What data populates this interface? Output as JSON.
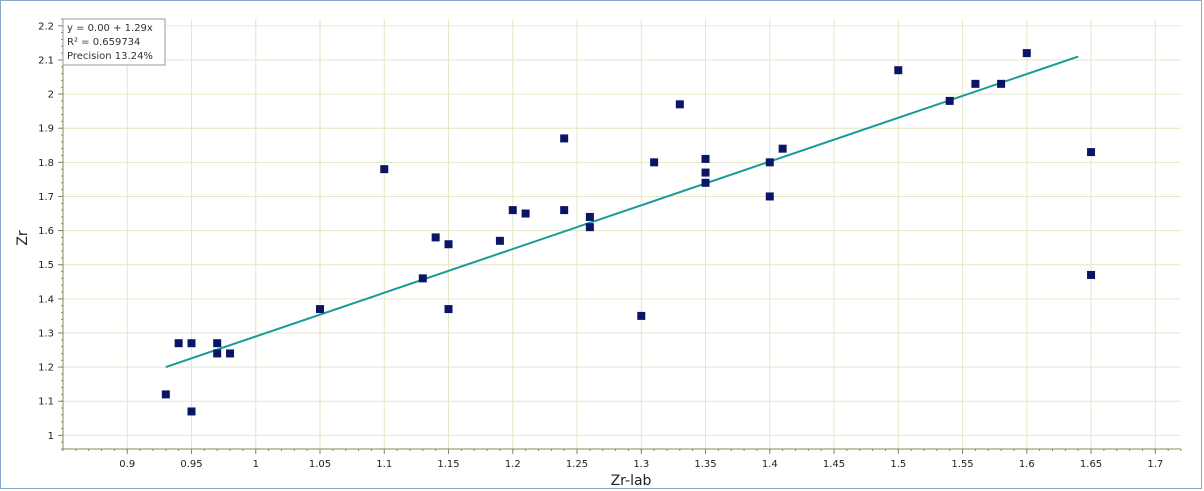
{
  "chart_data": {
    "type": "scatter",
    "xlabel": "Zr-lab",
    "ylabel": "Zr",
    "xlim": [
      0.85,
      1.72
    ],
    "ylim": [
      0.96,
      2.22
    ],
    "x_ticks": [
      "0.9",
      "0.95",
      "1",
      "1.05",
      "1.1",
      "1.15",
      "1.2",
      "1.25",
      "1.3",
      "1.35",
      "1.4",
      "1.45",
      "1.5",
      "1.55",
      "1.6",
      "1.65",
      "1.7"
    ],
    "y_ticks": [
      "1",
      "1.1",
      "1.2",
      "1.3",
      "1.4",
      "1.5",
      "1.6",
      "1.7",
      "1.8",
      "1.9",
      "2",
      "2.1",
      "2.2"
    ],
    "grid": true,
    "stats_box": {
      "equation": "y = 0.00 + 1.29x",
      "r_squared": "R² = 0.659734",
      "precision": "Precision 13.24%"
    },
    "series": [
      {
        "type": "scatter",
        "color": "#0b1565",
        "points": [
          [
            0.93,
            1.12
          ],
          [
            0.94,
            1.27
          ],
          [
            0.95,
            1.27
          ],
          [
            0.95,
            1.07
          ],
          [
            0.97,
            1.27
          ],
          [
            0.97,
            1.24
          ],
          [
            0.98,
            1.24
          ],
          [
            1.05,
            1.37
          ],
          [
            1.1,
            1.78
          ],
          [
            1.13,
            1.46
          ],
          [
            1.14,
            1.58
          ],
          [
            1.15,
            1.56
          ],
          [
            1.15,
            1.37
          ],
          [
            1.19,
            1.57
          ],
          [
            1.2,
            1.66
          ],
          [
            1.21,
            1.65
          ],
          [
            1.24,
            1.87
          ],
          [
            1.24,
            1.66
          ],
          [
            1.26,
            1.64
          ],
          [
            1.26,
            1.61
          ],
          [
            1.3,
            1.35
          ],
          [
            1.31,
            1.8
          ],
          [
            1.33,
            1.97
          ],
          [
            1.35,
            1.81
          ],
          [
            1.35,
            1.77
          ],
          [
            1.35,
            1.74
          ],
          [
            1.4,
            1.8
          ],
          [
            1.4,
            1.7
          ],
          [
            1.41,
            1.84
          ],
          [
            1.5,
            2.07
          ],
          [
            1.54,
            1.98
          ],
          [
            1.56,
            2.03
          ],
          [
            1.58,
            2.03
          ],
          [
            1.6,
            2.12
          ],
          [
            1.65,
            1.83
          ],
          [
            1.65,
            1.47
          ]
        ]
      },
      {
        "type": "line",
        "color": "#1a9a96",
        "points": [
          [
            0.93,
            1.2
          ],
          [
            1.64,
            2.11
          ]
        ]
      }
    ]
  }
}
